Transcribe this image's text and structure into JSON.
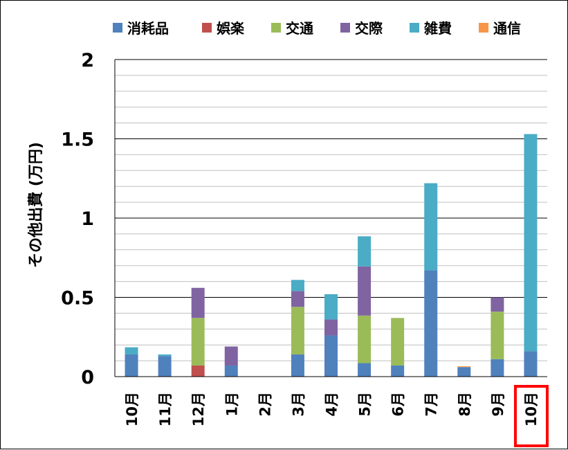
{
  "chart_data": {
    "type": "bar",
    "stacked": true,
    "ylabel": "その他出費 (万円)",
    "ylim": [
      0,
      2
    ],
    "y_ticks": [
      "0",
      "0.5",
      "1",
      "1.5",
      "2"
    ],
    "y_tick_values": [
      0,
      0.5,
      1,
      1.5,
      2
    ],
    "minor_grid_step": 0.1,
    "grid": true,
    "legend_position": "top",
    "categories": [
      "10月",
      "11月",
      "12月",
      "1月",
      "2月",
      "3月",
      "4月",
      "5月",
      "6月",
      "7月",
      "8月",
      "9月",
      "10月"
    ],
    "highlighted_category_index": 12,
    "highlight_color": "#ff0000",
    "series": [
      {
        "name": "消耗品",
        "color": "#4f81bd",
        "values": [
          0.14,
          0.13,
          0,
          0.07,
          0,
          0.14,
          0.26,
          0.085,
          0.07,
          0.67,
          0.06,
          0.11,
          0.16
        ]
      },
      {
        "name": "娯楽",
        "color": "#c0504d",
        "values": [
          0,
          0,
          0.07,
          0,
          0,
          0,
          0,
          0,
          0,
          0,
          0,
          0,
          0
        ]
      },
      {
        "name": "交通",
        "color": "#9bbb59",
        "values": [
          0,
          0,
          0.3,
          0,
          0,
          0.3,
          0,
          0.3,
          0.3,
          0,
          0,
          0.3,
          0
        ]
      },
      {
        "name": "交際",
        "color": "#8064a2",
        "values": [
          0,
          0,
          0.19,
          0.12,
          0,
          0.1,
          0.1,
          0.31,
          0,
          0,
          0,
          0.09,
          0
        ]
      },
      {
        "name": "雑費",
        "color": "#4bacc6",
        "values": [
          0.045,
          0.01,
          0,
          0,
          0,
          0.07,
          0.16,
          0.19,
          0,
          0.55,
          0,
          0,
          1.37
        ]
      },
      {
        "name": "通信",
        "color": "#f79646",
        "values": [
          0,
          0,
          0,
          0,
          0,
          0,
          0,
          0,
          0,
          0,
          0.005,
          0,
          0
        ]
      }
    ]
  }
}
